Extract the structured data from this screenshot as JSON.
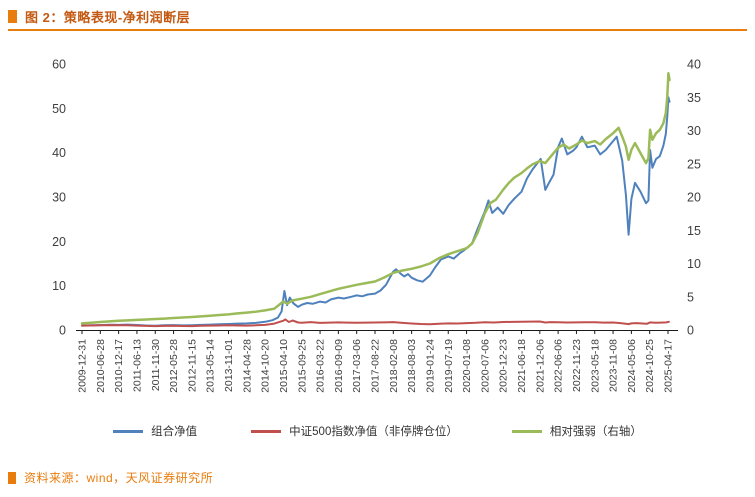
{
  "title": "图 2：策略表现-净利润断层",
  "source": "资料来源：wind，天风证券研究所",
  "colors": {
    "accent_orange": "#E87D0D",
    "title_text": "#C45911",
    "axis_text": "#404040",
    "series_blue": "#4F81BD",
    "series_red": "#C0504D",
    "series_green": "#9BBB59"
  },
  "chart_data": {
    "type": "line",
    "title": "策略表现-净利润断层",
    "xlabel": "",
    "ylabel": "",
    "grid": false,
    "legend_position": "bottom",
    "x_tick_labels": [
      "2009-12-31",
      "2010-06-28",
      "2010-12-17",
      "2011-06-13",
      "2011-11-30",
      "2012-05-28",
      "2012-11-15",
      "2013-05-14",
      "2013-11-01",
      "2014-04-28",
      "2014-10-20",
      "2015-04-10",
      "2015-09-25",
      "2016-03-22",
      "2016-09-09",
      "2017-03-06",
      "2017-08-22",
      "2018-02-08",
      "2018-08-03",
      "2019-01-24",
      "2019-07-19",
      "2020-01-08",
      "2020-07-06",
      "2020-12-23",
      "2021-06-18",
      "2021-12-06",
      "2022-06-06",
      "2022-11-23",
      "2023-05-18",
      "2023-11-08",
      "2024-05-06",
      "2024-10-25",
      "2025-04-17"
    ],
    "x_unit": "tick index 0-32 (maps onto x_tick_labels dates)",
    "left_axis": {
      "ticks": [
        0,
        10,
        20,
        30,
        40,
        50,
        60
      ],
      "range": [
        0,
        60
      ]
    },
    "right_axis": {
      "ticks": [
        0,
        5,
        10,
        15,
        20,
        25,
        30,
        35,
        40
      ],
      "range": [
        0,
        40
      ]
    },
    "series": [
      {
        "id": "portfolio",
        "name": "组合净值",
        "axis": "left",
        "color": "#4F81BD",
        "width": 2,
        "points": [
          [
            0,
            1.0
          ],
          [
            0.5,
            1.05
          ],
          [
            1,
            1.1
          ],
          [
            1.5,
            1.2
          ],
          [
            2,
            1.15
          ],
          [
            2.5,
            1.22
          ],
          [
            3,
            1.12
          ],
          [
            3.5,
            1.02
          ],
          [
            4,
            0.98
          ],
          [
            4.5,
            1.05
          ],
          [
            5,
            1.1
          ],
          [
            5.5,
            1.03
          ],
          [
            6,
            1.08
          ],
          [
            6.5,
            1.15
          ],
          [
            7,
            1.22
          ],
          [
            7.5,
            1.3
          ],
          [
            8,
            1.35
          ],
          [
            8.5,
            1.45
          ],
          [
            9,
            1.5
          ],
          [
            9.5,
            1.6
          ],
          [
            10,
            1.85
          ],
          [
            10.4,
            2.2
          ],
          [
            10.7,
            2.8
          ],
          [
            10.9,
            4.2
          ],
          [
            11.05,
            8.8
          ],
          [
            11.2,
            5.6
          ],
          [
            11.35,
            7.3
          ],
          [
            11.55,
            6.0
          ],
          [
            11.8,
            5.2
          ],
          [
            12,
            5.7
          ],
          [
            12.3,
            6.1
          ],
          [
            12.6,
            5.9
          ],
          [
            13,
            6.4
          ],
          [
            13.3,
            6.2
          ],
          [
            13.6,
            6.9
          ],
          [
            14,
            7.3
          ],
          [
            14.3,
            7.1
          ],
          [
            14.7,
            7.5
          ],
          [
            15,
            7.8
          ],
          [
            15.3,
            7.6
          ],
          [
            15.6,
            8.0
          ],
          [
            16,
            8.2
          ],
          [
            16.3,
            8.9
          ],
          [
            16.6,
            10.2
          ],
          [
            17,
            13.2
          ],
          [
            17.15,
            13.7
          ],
          [
            17.4,
            12.7
          ],
          [
            17.6,
            12.1
          ],
          [
            17.8,
            12.6
          ],
          [
            18,
            11.8
          ],
          [
            18.3,
            11.2
          ],
          [
            18.6,
            10.9
          ],
          [
            19,
            12.3
          ],
          [
            19.3,
            14.2
          ],
          [
            19.6,
            15.9
          ],
          [
            20,
            16.6
          ],
          [
            20.3,
            16.1
          ],
          [
            20.6,
            17.2
          ],
          [
            21,
            18.4
          ],
          [
            21.3,
            19.6
          ],
          [
            21.6,
            22.8
          ],
          [
            22,
            26.8
          ],
          [
            22.2,
            29.2
          ],
          [
            22.4,
            26.4
          ],
          [
            22.7,
            27.6
          ],
          [
            23,
            26.2
          ],
          [
            23.3,
            28.2
          ],
          [
            23.6,
            29.6
          ],
          [
            24,
            31.2
          ],
          [
            24.3,
            34.2
          ],
          [
            24.6,
            36.2
          ],
          [
            24.9,
            37.8
          ],
          [
            25.05,
            38.6
          ],
          [
            25.3,
            31.6
          ],
          [
            25.5,
            33.2
          ],
          [
            25.75,
            35.0
          ],
          [
            26,
            41.2
          ],
          [
            26.2,
            43.2
          ],
          [
            26.5,
            39.6
          ],
          [
            26.8,
            40.4
          ],
          [
            27,
            41.2
          ],
          [
            27.3,
            43.6
          ],
          [
            27.6,
            41.2
          ],
          [
            28,
            41.6
          ],
          [
            28.3,
            39.6
          ],
          [
            28.6,
            40.6
          ],
          [
            29,
            42.6
          ],
          [
            29.2,
            43.6
          ],
          [
            29.5,
            38.2
          ],
          [
            29.7,
            30.5
          ],
          [
            29.85,
            21.5
          ],
          [
            30,
            29.6
          ],
          [
            30.2,
            33.2
          ],
          [
            30.5,
            31.2
          ],
          [
            30.8,
            28.6
          ],
          [
            30.93,
            29.2
          ],
          [
            31.02,
            40.6
          ],
          [
            31.15,
            36.6
          ],
          [
            31.35,
            38.6
          ],
          [
            31.55,
            39.2
          ],
          [
            31.75,
            41.6
          ],
          [
            31.88,
            44.2
          ],
          [
            31.96,
            48.2
          ],
          [
            32.02,
            52.5
          ],
          [
            32.08,
            51.5
          ]
        ]
      },
      {
        "id": "csi500",
        "name": "中证500指数净值（非停牌仓位）",
        "axis": "left",
        "color": "#C0504D",
        "width": 2,
        "points": [
          [
            0,
            1.0
          ],
          [
            0.5,
            1.02
          ],
          [
            1,
            1.06
          ],
          [
            1.5,
            1.1
          ],
          [
            2,
            1.08
          ],
          [
            2.5,
            1.05
          ],
          [
            3,
            1.0
          ],
          [
            3.5,
            0.92
          ],
          [
            4,
            0.88
          ],
          [
            4.5,
            0.92
          ],
          [
            5,
            0.96
          ],
          [
            5.5,
            0.9
          ],
          [
            6,
            0.88
          ],
          [
            6.5,
            0.95
          ],
          [
            7,
            1.0
          ],
          [
            7.5,
            1.02
          ],
          [
            8,
            1.05
          ],
          [
            8.5,
            1.02
          ],
          [
            9,
            1.0
          ],
          [
            9.5,
            1.05
          ],
          [
            10,
            1.15
          ],
          [
            10.5,
            1.45
          ],
          [
            11,
            2.1
          ],
          [
            11.1,
            2.4
          ],
          [
            11.3,
            1.8
          ],
          [
            11.5,
            2.15
          ],
          [
            11.8,
            1.7
          ],
          [
            12,
            1.62
          ],
          [
            12.5,
            1.78
          ],
          [
            13,
            1.6
          ],
          [
            13.5,
            1.66
          ],
          [
            14,
            1.72
          ],
          [
            14.5,
            1.66
          ],
          [
            15,
            1.64
          ],
          [
            15.5,
            1.68
          ],
          [
            16,
            1.7
          ],
          [
            16.5,
            1.72
          ],
          [
            17,
            1.78
          ],
          [
            17.5,
            1.6
          ],
          [
            18,
            1.46
          ],
          [
            18.5,
            1.36
          ],
          [
            19,
            1.3
          ],
          [
            19.5,
            1.42
          ],
          [
            20,
            1.5
          ],
          [
            20.5,
            1.46
          ],
          [
            21,
            1.56
          ],
          [
            21.5,
            1.62
          ],
          [
            22,
            1.76
          ],
          [
            22.5,
            1.7
          ],
          [
            23,
            1.8
          ],
          [
            23.5,
            1.82
          ],
          [
            24,
            1.86
          ],
          [
            24.5,
            1.9
          ],
          [
            25,
            1.92
          ],
          [
            25.3,
            1.7
          ],
          [
            25.6,
            1.78
          ],
          [
            26,
            1.76
          ],
          [
            26.5,
            1.7
          ],
          [
            27,
            1.72
          ],
          [
            27.5,
            1.76
          ],
          [
            28,
            1.74
          ],
          [
            28.5,
            1.68
          ],
          [
            29,
            1.7
          ],
          [
            29.4,
            1.56
          ],
          [
            29.7,
            1.42
          ],
          [
            29.85,
            1.32
          ],
          [
            30,
            1.5
          ],
          [
            30.3,
            1.56
          ],
          [
            30.6,
            1.46
          ],
          [
            30.85,
            1.4
          ],
          [
            31.02,
            1.72
          ],
          [
            31.3,
            1.62
          ],
          [
            31.6,
            1.66
          ],
          [
            31.9,
            1.72
          ],
          [
            32.05,
            1.85
          ]
        ]
      },
      {
        "id": "relative-strength",
        "name": "相对强弱（右轴）",
        "axis": "right",
        "color": "#9BBB59",
        "width": 2.5,
        "points": [
          [
            0,
            1.0
          ],
          [
            0.5,
            1.1
          ],
          [
            1,
            1.2
          ],
          [
            1.5,
            1.3
          ],
          [
            2,
            1.38
          ],
          [
            2.5,
            1.45
          ],
          [
            3,
            1.52
          ],
          [
            3.5,
            1.58
          ],
          [
            4,
            1.65
          ],
          [
            4.5,
            1.72
          ],
          [
            5,
            1.8
          ],
          [
            5.5,
            1.88
          ],
          [
            6,
            1.95
          ],
          [
            6.5,
            2.05
          ],
          [
            7,
            2.15
          ],
          [
            7.5,
            2.25
          ],
          [
            8,
            2.35
          ],
          [
            8.5,
            2.5
          ],
          [
            9,
            2.62
          ],
          [
            9.5,
            2.75
          ],
          [
            10,
            2.95
          ],
          [
            10.5,
            3.2
          ],
          [
            11,
            4.3
          ],
          [
            11.2,
            3.95
          ],
          [
            11.5,
            4.45
          ],
          [
            12,
            4.7
          ],
          [
            12.5,
            5.0
          ],
          [
            13,
            5.4
          ],
          [
            13.5,
            5.8
          ],
          [
            14,
            6.2
          ],
          [
            14.5,
            6.5
          ],
          [
            15,
            6.8
          ],
          [
            15.5,
            7.05
          ],
          [
            16,
            7.3
          ],
          [
            16.5,
            7.9
          ],
          [
            17,
            8.6
          ],
          [
            17.5,
            8.95
          ],
          [
            18,
            9.2
          ],
          [
            18.5,
            9.55
          ],
          [
            19,
            10.0
          ],
          [
            19.5,
            10.8
          ],
          [
            20,
            11.4
          ],
          [
            20.5,
            11.85
          ],
          [
            21,
            12.3
          ],
          [
            21.3,
            13.0
          ],
          [
            21.6,
            14.6
          ],
          [
            22,
            17.6
          ],
          [
            22.3,
            19.1
          ],
          [
            22.6,
            19.6
          ],
          [
            23,
            21.1
          ],
          [
            23.3,
            22.1
          ],
          [
            23.6,
            22.9
          ],
          [
            24,
            23.6
          ],
          [
            24.3,
            24.3
          ],
          [
            24.6,
            24.9
          ],
          [
            25,
            25.4
          ],
          [
            25.3,
            25.1
          ],
          [
            25.6,
            26.1
          ],
          [
            26,
            27.4
          ],
          [
            26.3,
            27.9
          ],
          [
            26.6,
            27.3
          ],
          [
            27,
            27.9
          ],
          [
            27.3,
            28.5
          ],
          [
            27.6,
            28.1
          ],
          [
            28,
            28.4
          ],
          [
            28.3,
            27.9
          ],
          [
            28.6,
            28.7
          ],
          [
            29,
            29.6
          ],
          [
            29.3,
            30.4
          ],
          [
            29.5,
            29.1
          ],
          [
            29.7,
            27.6
          ],
          [
            29.85,
            25.6
          ],
          [
            30,
            27.1
          ],
          [
            30.2,
            28.1
          ],
          [
            30.5,
            26.6
          ],
          [
            30.8,
            25.1
          ],
          [
            30.93,
            25.8
          ],
          [
            31.02,
            30.1
          ],
          [
            31.15,
            28.6
          ],
          [
            31.35,
            29.6
          ],
          [
            31.55,
            30.1
          ],
          [
            31.75,
            31.1
          ],
          [
            31.88,
            32.6
          ],
          [
            31.96,
            35.1
          ],
          [
            32.02,
            38.6
          ],
          [
            32.08,
            37.6
          ]
        ]
      }
    ]
  }
}
